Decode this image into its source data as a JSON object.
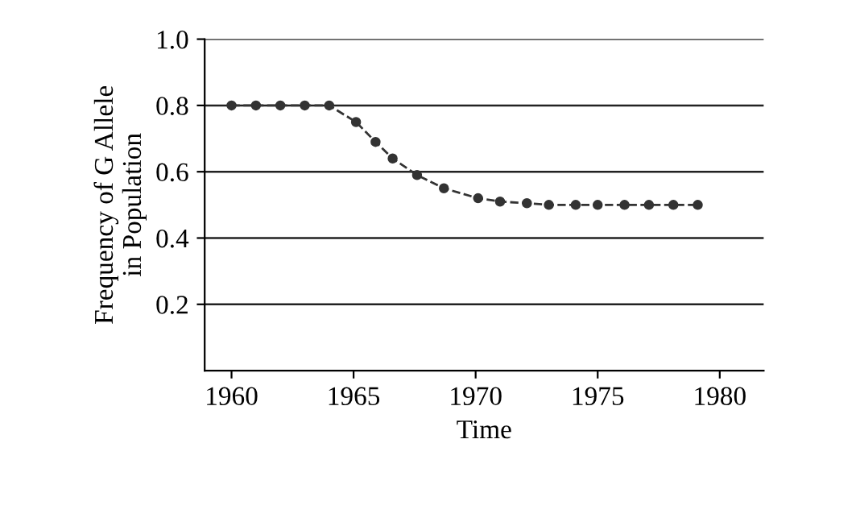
{
  "chart_data": {
    "type": "line",
    "xlabel": "Time",
    "ylabel": "Frequency of G Allele\nin Population",
    "x": [
      1960,
      1961,
      1962,
      1963,
      1964,
      1965.1,
      1965.9,
      1966.6,
      1967.6,
      1968.7,
      1970.1,
      1971,
      1972.1,
      1973,
      1974.1,
      1975,
      1976.1,
      1977.1,
      1978.1,
      1979.1
    ],
    "series": [
      {
        "color": "#333333",
        "values": [
          0.8,
          0.8,
          0.8,
          0.8,
          0.8,
          0.75,
          0.69,
          0.64,
          0.59,
          0.55,
          0.52,
          0.51,
          0.505,
          0.5,
          0.5,
          0.5,
          0.5,
          0.5,
          0.5,
          0.5
        ]
      }
    ],
    "xlim": [
      1958.9,
      1981.8
    ],
    "ylim": [
      0,
      1.0
    ],
    "xticks": [
      1960,
      1965,
      1970,
      1975,
      1980
    ],
    "yticks": [
      {
        "value": 0.2,
        "label": "0.2"
      },
      {
        "value": 0.4,
        "label": "0.4"
      },
      {
        "value": 0.6,
        "label": "0.6"
      },
      {
        "value": 0.8,
        "label": "0.8"
      },
      {
        "value": 1.0,
        "label": "1.0"
      }
    ],
    "grid": "y",
    "marker": "circle",
    "line_style": "dashed",
    "legend": false
  }
}
